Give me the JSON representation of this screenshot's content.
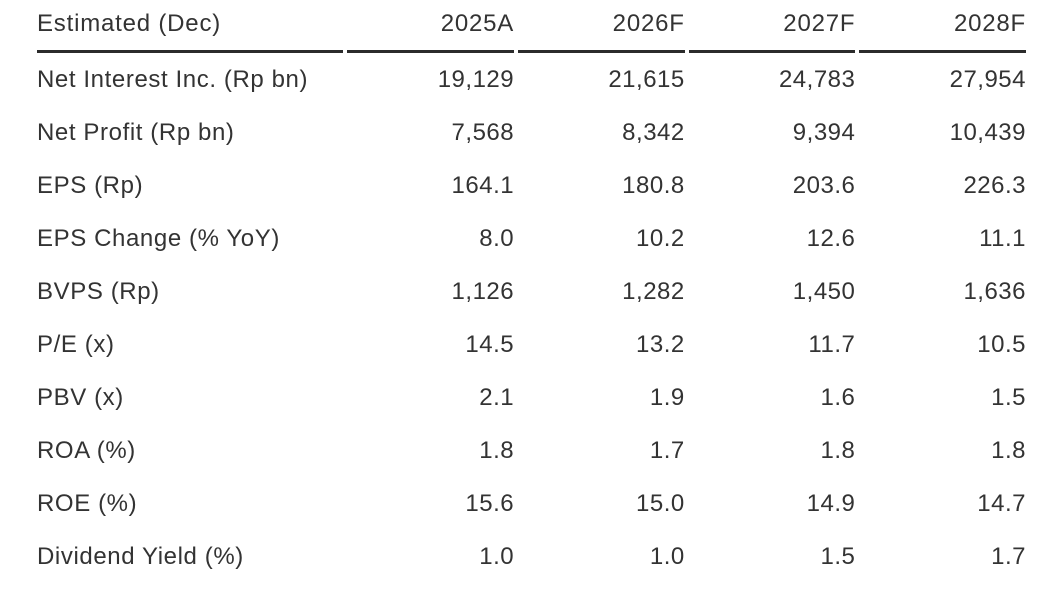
{
  "page": {
    "background_color": "#ffffff",
    "text_color": "#333333",
    "rule_color": "#2b2b2b"
  },
  "table": {
    "header": [
      "Estimated (Dec)",
      "2025A",
      "2026F",
      "2027F",
      "2028F"
    ],
    "rows": [
      {
        "label": "Net Interest Inc. (Rp bn)",
        "values": [
          "19,129",
          "21,615",
          "24,783",
          "27,954"
        ]
      },
      {
        "label": "Net Profit (Rp bn)",
        "values": [
          "7,568",
          "8,342",
          "9,394",
          "10,439"
        ]
      },
      {
        "label": "EPS (Rp)",
        "values": [
          "164.1",
          "180.8",
          "203.6",
          "226.3"
        ]
      },
      {
        "label": "EPS Change (% YoY)",
        "values": [
          "8.0",
          "10.2",
          "12.6",
          "11.1"
        ]
      },
      {
        "label": "BVPS (Rp)",
        "values": [
          "1,126",
          "1,282",
          "1,450",
          "1,636"
        ]
      },
      {
        "label": "P/E (x)",
        "values": [
          "14.5",
          "13.2",
          "11.7",
          "10.5"
        ]
      },
      {
        "label": "PBV (x)",
        "values": [
          "2.1",
          "1.9",
          "1.6",
          "1.5"
        ]
      },
      {
        "label": "ROA (%)",
        "values": [
          "1.8",
          "1.7",
          "1.8",
          "1.8"
        ]
      },
      {
        "label": "ROE (%)",
        "values": [
          "15.6",
          "15.0",
          "14.9",
          "14.7"
        ]
      },
      {
        "label": "Dividend Yield (%)",
        "values": [
          "1.0",
          "1.0",
          "1.5",
          "1.7"
        ]
      }
    ]
  },
  "chart_data": {
    "type": "table",
    "title": "Estimated (Dec)",
    "columns": [
      "Estimated (Dec)",
      "2025A",
      "2026F",
      "2027F",
      "2028F"
    ],
    "rows": [
      [
        "Net Interest Inc. (Rp bn)",
        19129,
        21615,
        24783,
        27954
      ],
      [
        "Net Profit (Rp bn)",
        7568,
        8342,
        9394,
        10439
      ],
      [
        "EPS (Rp)",
        164.1,
        180.8,
        203.6,
        226.3
      ],
      [
        "EPS Change (% YoY)",
        8.0,
        10.2,
        12.6,
        11.1
      ],
      [
        "BVPS (Rp)",
        1126,
        1282,
        1450,
        1636
      ],
      [
        "P/E (x)",
        14.5,
        13.2,
        11.7,
        10.5
      ],
      [
        "PBV (x)",
        2.1,
        1.9,
        1.6,
        1.5
      ],
      [
        "ROA (%)",
        1.8,
        1.7,
        1.8,
        1.8
      ],
      [
        "ROE (%)",
        15.6,
        15.0,
        14.9,
        14.7
      ],
      [
        "Dividend Yield (%)",
        1.0,
        1.0,
        1.5,
        1.7
      ]
    ]
  }
}
